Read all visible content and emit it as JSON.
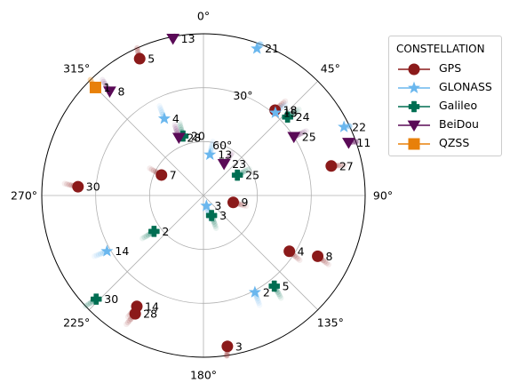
{
  "chart_data": {
    "type": "polar-scatter",
    "title": "",
    "legend": {
      "title": "CONSTELLATION",
      "placement": "upper-right-outside",
      "entries": [
        {
          "name": "GPS",
          "color": "#8b1a1a",
          "marker": "circle"
        },
        {
          "name": "GLONASS",
          "color": "#6ab7ee",
          "marker": "star"
        },
        {
          "name": "Galileo",
          "color": "#006e52",
          "marker": "plus"
        },
        {
          "name": "BeiDou",
          "color": "#5a0a57",
          "marker": "triangle-down"
        },
        {
          "name": "QZSS",
          "color": "#e8800a",
          "marker": "square"
        }
      ]
    },
    "azimuth": {
      "zero_location": "N",
      "direction": "clockwise",
      "tick_labels": [
        "0°",
        "45°",
        "90°",
        "135°",
        "180°",
        "225°",
        "270°",
        "315°"
      ]
    },
    "elevation": {
      "center": 90,
      "edge": 0,
      "tick_labels": [
        "30°",
        "60°"
      ],
      "tick_label_azimuth": 22.5
    },
    "grid": true,
    "series": [
      {
        "name": "GPS",
        "points": [
          {
            "prn": "5",
            "az": 335,
            "el": 6
          },
          {
            "prn": "18",
            "az": 40,
            "el": 28
          },
          {
            "prn": "7",
            "az": 296,
            "el": 64
          },
          {
            "prn": "27",
            "az": 77,
            "el": 17
          },
          {
            "prn": "30",
            "az": 274,
            "el": 20
          },
          {
            "prn": "9",
            "az": 103,
            "el": 73
          },
          {
            "prn": "4",
            "az": 123,
            "el": 33
          },
          {
            "prn": "8",
            "az": 118,
            "el": 18
          },
          {
            "prn": "14",
            "az": 211,
            "el": 18
          },
          {
            "prn": "28",
            "az": 210,
            "el": 14
          },
          {
            "prn": "3",
            "az": 171,
            "el": 5
          }
        ]
      },
      {
        "name": "GLONASS",
        "points": [
          {
            "prn": "21",
            "az": 20,
            "el": 3
          },
          {
            "prn": "15",
            "az": 41,
            "el": 29
          },
          {
            "prn": "22",
            "az": 64,
            "el": 3
          },
          {
            "prn": "4",
            "az": 333,
            "el": 42
          },
          {
            "prn": "13",
            "az": 9,
            "el": 67
          },
          {
            "prn": "3",
            "az": 164,
            "el": 84
          },
          {
            "prn": "14",
            "az": 240,
            "el": 28
          },
          {
            "prn": "2",
            "az": 152,
            "el": 29
          }
        ]
      },
      {
        "name": "Galileo",
        "points": [
          {
            "prn": "24",
            "az": 47,
            "el": 26
          },
          {
            "prn": "25",
            "az": 59,
            "el": 68
          },
          {
            "prn": "20",
            "az": 341,
            "el": 55
          },
          {
            "prn": "3",
            "az": 158,
            "el": 78
          },
          {
            "prn": "2",
            "az": 234,
            "el": 56
          },
          {
            "prn": "5",
            "az": 142,
            "el": 26
          },
          {
            "prn": "30",
            "az": 226,
            "el": 7
          }
        ]
      },
      {
        "name": "BeiDou",
        "points": [
          {
            "prn": "13",
            "az": 349,
            "el": 1
          },
          {
            "prn": "8",
            "az": 318,
            "el": 12
          },
          {
            "prn": "25",
            "az": 57,
            "el": 30
          },
          {
            "prn": "11",
            "az": 70,
            "el": 4
          },
          {
            "prn": "28",
            "az": 337,
            "el": 55
          },
          {
            "prn": "23",
            "az": 33,
            "el": 69
          }
        ]
      },
      {
        "name": "QZSS",
        "points": [
          {
            "prn": "1",
            "az": 315,
            "el": 5
          }
        ]
      }
    ]
  }
}
